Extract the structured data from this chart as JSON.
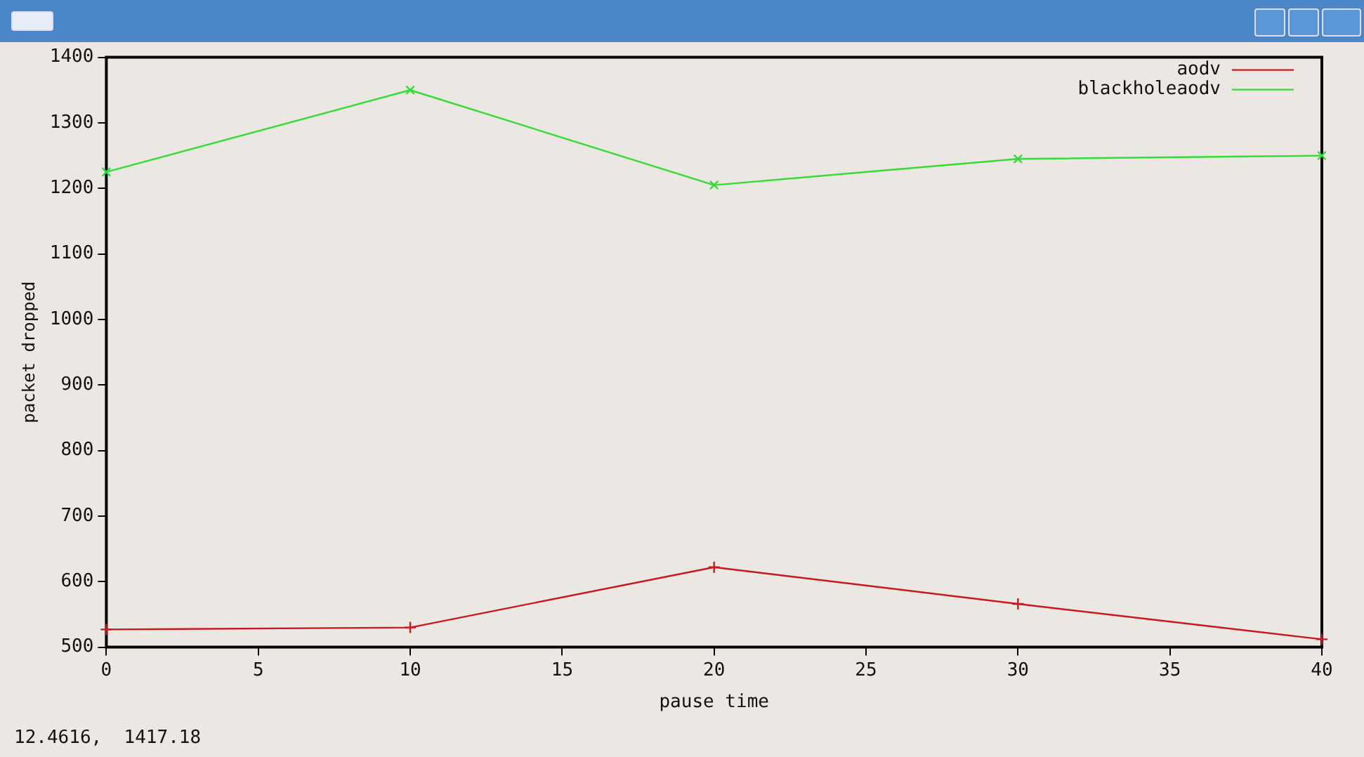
{
  "chart_data": {
    "type": "line",
    "xlabel": "pause time",
    "ylabel": "packet dropped",
    "x": [
      0,
      10,
      20,
      30,
      40
    ],
    "series": [
      {
        "name": "aodv",
        "color": "#c8191e",
        "values": [
          527,
          530,
          622,
          566,
          512
        ]
      },
      {
        "name": "blackholeaodv",
        "color": "#33dd33",
        "values": [
          1225,
          1350,
          1205,
          1245,
          1250
        ]
      }
    ],
    "xlim": [
      0,
      40
    ],
    "xticks": [
      0,
      5,
      10,
      15,
      20,
      25,
      30,
      35,
      40
    ],
    "ylim": [
      500,
      1400
    ],
    "yticks": [
      500,
      600,
      700,
      800,
      900,
      1000,
      1100,
      1200,
      1300,
      1400
    ],
    "grid": false,
    "legend": "top right",
    "marker": "cross",
    "line_style": "solid",
    "annotations": [
      "12.4616,  1417.18"
    ]
  }
}
